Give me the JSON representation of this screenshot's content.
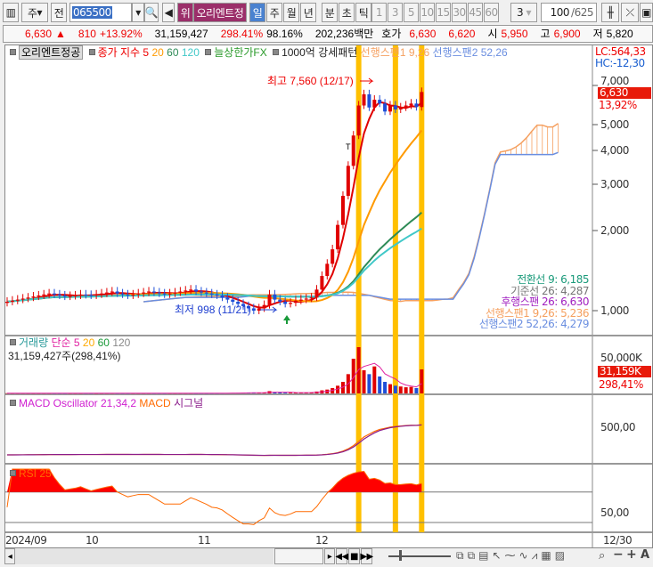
{
  "toolbar": {
    "market": "주",
    "prev_label": "전",
    "code": "065500",
    "stock_name": "오리엔트정",
    "warning_badge": "위",
    "periods": [
      "일",
      "주",
      "월",
      "년",
      "분",
      "초",
      "틱"
    ],
    "selected_period": "일",
    "intervals": [
      "1",
      "3",
      "5",
      "10",
      "15",
      "30",
      "45",
      "60"
    ],
    "interval_select": "3",
    "count": "100",
    "total": "/625"
  },
  "info": {
    "price": "6,630",
    "arrow": "▲",
    "change": "810",
    "change_pct": "+13.92%",
    "volume": "31,159,427",
    "volume_pct": "298.41%",
    "turnover_pct": "98.16%",
    "amount": "202,236백만",
    "quote_label": "호가",
    "ask": "6,630",
    "bid": "6,620",
    "open_label": "시",
    "open": "5,950",
    "high_label": "고",
    "high": "6,900",
    "low_label": "저",
    "low": "5,820"
  },
  "main_legend": {
    "name": "오리엔트정공",
    "ma_label": "종가 지수 5",
    "ma20": "20",
    "ma60": "60",
    "ma120": "120",
    "limit_up": "늘상한가FX",
    "strong": "1000억 강세패턴",
    "span1": "선행스팬1 9,26",
    "span2": "선행스팬2 52,26"
  },
  "right_axis": {
    "lc": "LC:564,33",
    "hc": "HC:-12,30",
    "price_tag": "6,630",
    "pct_tag": "13,92%",
    "ticks": [
      "7,000",
      "5,000",
      "4,000",
      "3,000",
      "2,000",
      "1,000"
    ]
  },
  "annotations": {
    "high": "최고 7,560 (12/17)",
    "low": "최저 998 (11/21)",
    "marker_T": "T"
  },
  "ichimoku_values": [
    "전환선 9: 6,185",
    "기준선 26: 4,287",
    "후행스팬 26: 6,630",
    "선행스팬1 9,26: 5,236",
    "선행스팬2 52,26: 4,279"
  ],
  "volume_legend": {
    "label": "거래량",
    "ma": "단순 5",
    "ma20": "20",
    "ma60": "60",
    "ma120": "120",
    "value": "31,159,427주(298,41%)",
    "tick": "50,000K",
    "tag": "31,159K",
    "tag_pct": "298,41%"
  },
  "macd_legend": {
    "osc": "MACD Oscillator 21,34,2",
    "macd": "MACD",
    "signal": "시그널",
    "tick": "500,00"
  },
  "rsi_legend": {
    "label": "RSI 25",
    "tick": "50,00"
  },
  "date_axis": [
    "2024/09",
    "10",
    "11",
    "12",
    "12/30"
  ],
  "colors": {
    "up": "#e00000",
    "down": "#1f4fd8",
    "ma5": "#e00000",
    "ma20": "#ff9a00",
    "ma60": "#2e8b57",
    "ma120": "#40c8c8",
    "highlight": "#ffc000",
    "span1": "#f5a060",
    "span2": "#6a8ee0"
  },
  "chart_data": {
    "type": "candlestick",
    "yscale": "log",
    "closes": [
      1080,
      1090,
      1100,
      1110,
      1120,
      1130,
      1140,
      1150,
      1160,
      1150,
      1140,
      1130,
      1135,
      1140,
      1150,
      1145,
      1140,
      1150,
      1160,
      1170,
      1180,
      1160,
      1150,
      1140,
      1150,
      1160,
      1170,
      1180,
      1170,
      1160,
      1150,
      1160,
      1170,
      1180,
      1190,
      1200,
      1180,
      1170,
      1160,
      1150,
      1140,
      1120,
      1100,
      1080,
      1060,
      1040,
      1020,
      1000,
      1020,
      1050,
      1150,
      1100,
      1080,
      1060,
      1070,
      1090,
      1100,
      1110,
      1120,
      1200,
      1350,
      1500,
      1700,
      2100,
      2700,
      3500,
      4550,
      5900,
      6500,
      5800,
      6200,
      6000,
      5600,
      5900,
      5700,
      5800,
      5900,
      6000,
      5820,
      6630
    ],
    "volumes_k": [
      300,
      250,
      280,
      300,
      260,
      240,
      250,
      300,
      320,
      280,
      260,
      240,
      250,
      260,
      300,
      280,
      260,
      250,
      240,
      300,
      320,
      260,
      250,
      240,
      260,
      280,
      300,
      320,
      300,
      280,
      260,
      280,
      300,
      320,
      340,
      360,
      300,
      280,
      260,
      250,
      300,
      400,
      500,
      600,
      700,
      800,
      900,
      1000,
      900,
      1200,
      3000,
      1500,
      1200,
      1000,
      900,
      1000,
      1100,
      1200,
      1300,
      2500,
      4000,
      5000,
      7000,
      10000,
      15000,
      25000,
      45000,
      60000,
      30000,
      25000,
      35000,
      22000,
      15000,
      12000,
      10000,
      9000,
      8000,
      8500,
      7000,
      31159
    ],
    "highlight_bars": [
      67,
      74,
      79
    ]
  }
}
